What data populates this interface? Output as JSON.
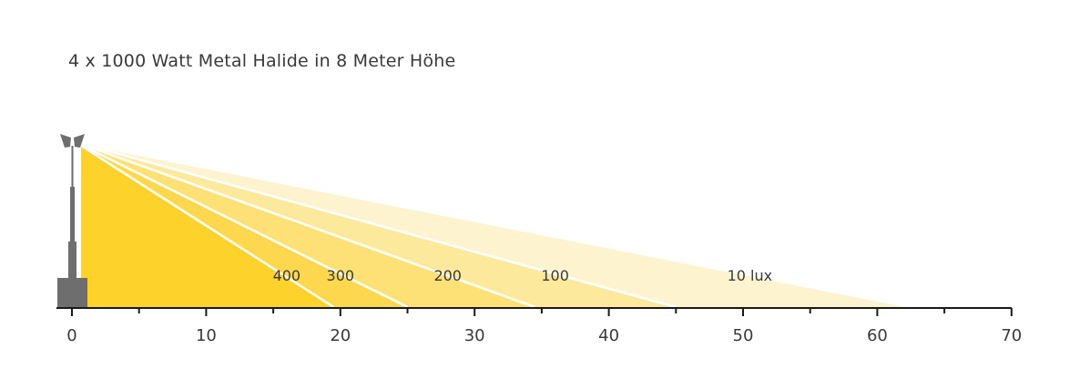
{
  "title": "4 x 1000 Watt Metal Halide in 8 Meter Höhe",
  "colors": {
    "axis": "#1a1a1a",
    "mast": "#6e6e6e",
    "divider": "#ffffff",
    "zones": [
      "#fdf3cf",
      "#fde99c",
      "#fde176",
      "#fdd84f",
      "#fdd22b"
    ]
  },
  "axis": {
    "min": 0,
    "max": 70,
    "major_ticks": [
      0,
      10,
      20,
      30,
      40,
      50,
      60,
      70
    ],
    "minor_ticks": [
      5,
      15,
      25,
      35,
      45,
      55,
      65
    ]
  },
  "mast": {
    "height_m": 8
  },
  "zones": [
    {
      "lux": 10,
      "reach_m": 62.5,
      "label": "10 lux",
      "label_at_m": 50.5
    },
    {
      "lux": 100,
      "reach_m": 45,
      "label": "100",
      "label_at_m": 36
    },
    {
      "lux": 200,
      "reach_m": 34.5,
      "label": "200",
      "label_at_m": 28
    },
    {
      "lux": 300,
      "reach_m": 25,
      "label": "300",
      "label_at_m": 20
    },
    {
      "lux": 400,
      "reach_m": 19.5,
      "label": "400",
      "label_at_m": 16
    }
  ]
}
